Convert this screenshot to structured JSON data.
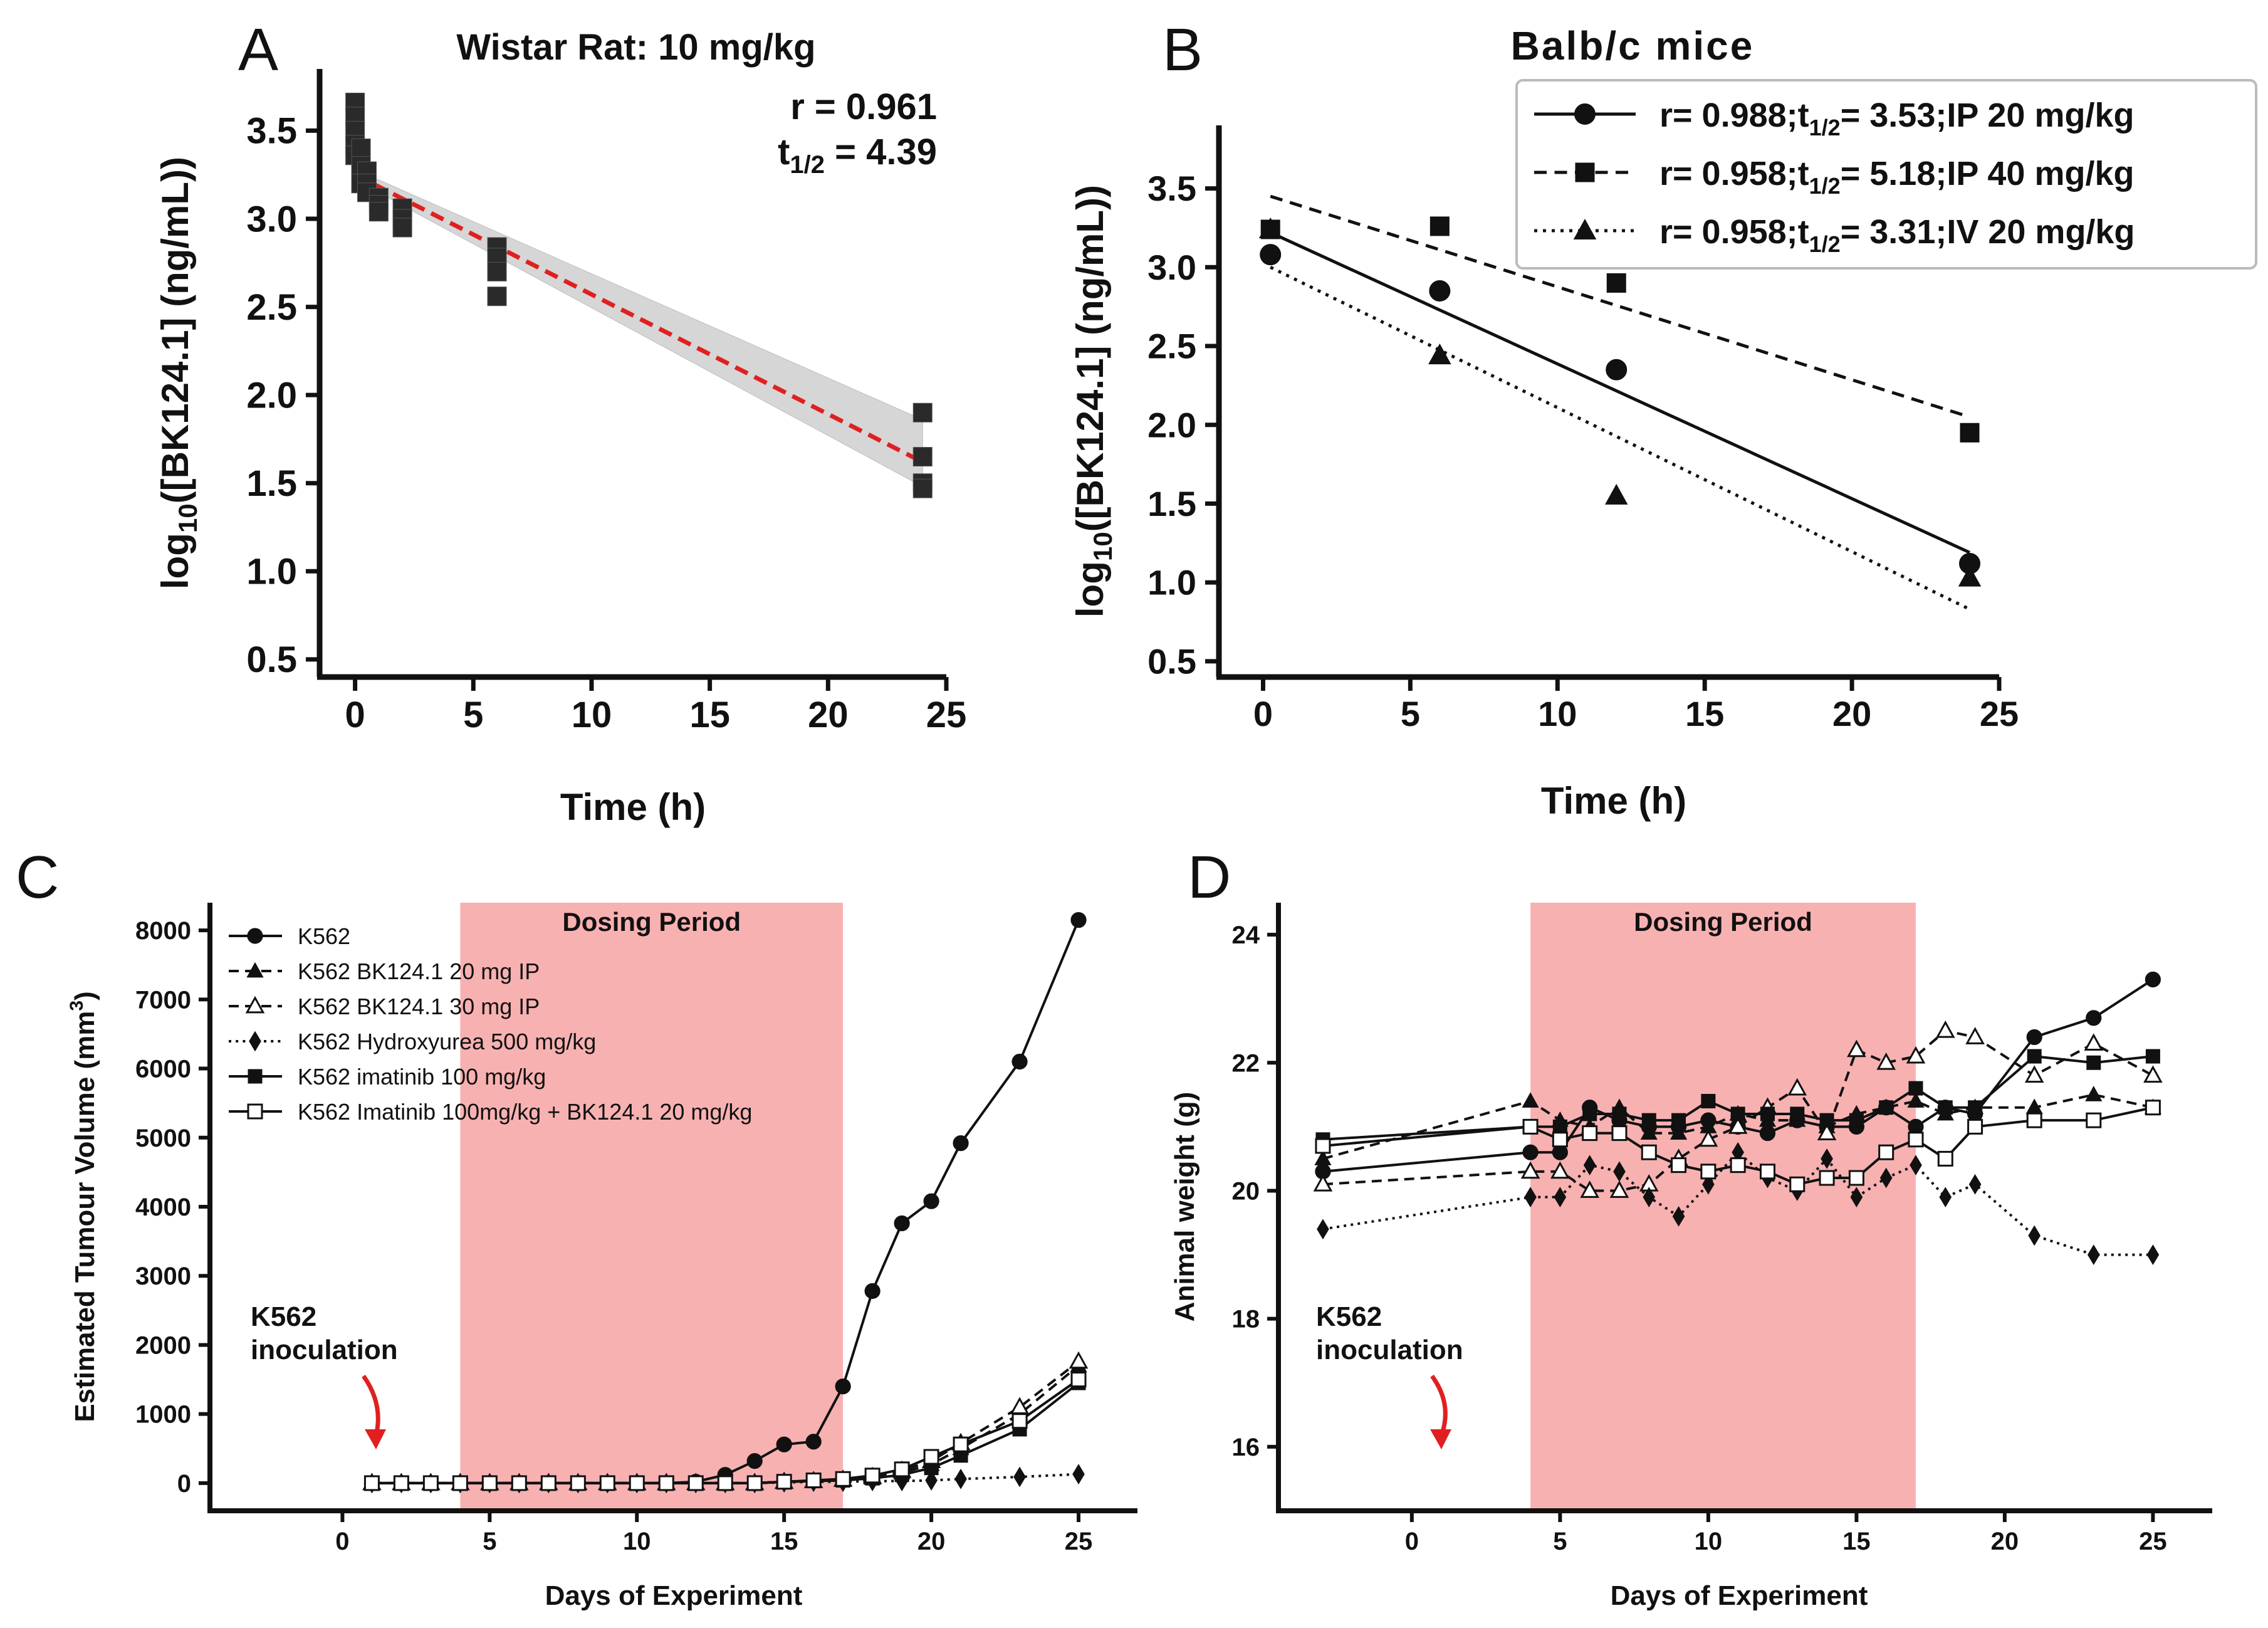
{
  "colors": {
    "ink": "#111111",
    "fit_a": "#e02020",
    "band_a": "#cfcfcf",
    "dosing_fill": "#f7a8a8",
    "annotation": "#e02020"
  },
  "chart_data": [
    {
      "panel": "A",
      "type": "scatter",
      "title": "Wistar Rat: 10 mg/kg",
      "xlabel": "Time (h)",
      "ylabel": "log10([BK124.1] (ng/mL))",
      "xlim": [
        -1.5,
        25
      ],
      "ylim": [
        0.4,
        3.85
      ],
      "xticks": [
        0,
        5,
        10,
        15,
        20,
        25
      ],
      "yticks": [
        0.5,
        1.0,
        1.5,
        2.0,
        2.5,
        3.0,
        3.5
      ],
      "ytick_labels": [
        "0.5",
        "1.0",
        "1.5",
        "2.0",
        "2.5",
        "3.0",
        "3.5"
      ],
      "annotation": {
        "r": "r = 0.961",
        "t_half": "t1/2 = 4.39"
      },
      "points": {
        "x": [
          0,
          0,
          0,
          0,
          0,
          0.25,
          0.25,
          0.25,
          0.5,
          0.5,
          0.5,
          1,
          1,
          1,
          2,
          2,
          2,
          6,
          6,
          6,
          6,
          24,
          24,
          24,
          24
        ],
        "y": [
          3.66,
          3.58,
          3.5,
          3.42,
          3.36,
          3.4,
          3.3,
          3.2,
          3.27,
          3.2,
          3.15,
          3.12,
          3.08,
          3.04,
          3.06,
          3.0,
          2.95,
          2.84,
          2.78,
          2.7,
          2.56,
          1.9,
          1.65,
          1.5,
          1.47
        ]
      },
      "fit": {
        "x": [
          0,
          24
        ],
        "y": [
          3.25,
          1.62
        ]
      },
      "ci_band": {
        "x": [
          0,
          24
        ],
        "upper": [
          3.28,
          1.86
        ],
        "lower": [
          3.22,
          1.48
        ]
      }
    },
    {
      "panel": "B",
      "type": "scatter",
      "title": "Balb/c  mice",
      "xlabel": "Time (h)",
      "ylabel": "log10([BK124.1] (ng/mL))",
      "xlim": [
        -1.5,
        25
      ],
      "ylim": [
        0.4,
        3.9
      ],
      "xticks": [
        0,
        5,
        10,
        15,
        20,
        25
      ],
      "yticks": [
        0.5,
        1.0,
        1.5,
        2.0,
        2.5,
        3.0,
        3.5
      ],
      "ytick_labels": [
        "0.5",
        "1.0",
        "1.5",
        "2.0",
        "2.5",
        "3.0",
        "3.5"
      ],
      "series": [
        {
          "name": "r= 0.988;t1/2= 3.53;IP 20 mg/kg",
          "r": "r= 0.988;",
          "t_half": "3.53",
          "route": ";IP 20 mg/kg",
          "marker": "circle",
          "linestyle": "solid",
          "x": [
            0.25,
            6,
            12,
            24
          ],
          "y": [
            3.08,
            2.85,
            2.35,
            1.12
          ],
          "fit": {
            "x": [
              0.25,
              24
            ],
            "y": [
              3.22,
              1.19
            ]
          }
        },
        {
          "name": "r= 0.958;t1/2= 5.18;IP 40 mg/kg",
          "r": "r= 0.958;",
          "t_half": "5.18",
          "route": ";IP 40 mg/kg",
          "marker": "square",
          "linestyle": "dashed",
          "x": [
            0.25,
            6,
            12,
            24
          ],
          "y": [
            3.24,
            3.26,
            2.9,
            1.95
          ],
          "fit": {
            "x": [
              0.25,
              24
            ],
            "y": [
              3.45,
              2.05
            ]
          }
        },
        {
          "name": "r= 0.958;t1/2= 3.31;IV 20 mg/kg",
          "r": "r= 0.958;",
          "t_half": "3.31",
          "route": ";IV 20 mg/kg",
          "marker": "triangle",
          "linestyle": "dotted",
          "x": [
            0.25,
            6,
            12,
            24
          ],
          "y": [
            3.24,
            2.44,
            1.55,
            1.03
          ],
          "fit": {
            "x": [
              0.25,
              24
            ],
            "y": [
              3.0,
              0.83
            ]
          }
        }
      ]
    },
    {
      "panel": "C",
      "type": "line",
      "xlabel": "Days of Experiment",
      "ylabel": "Estimated Tumour Volume (mm3)",
      "xlim": [
        -4.5,
        27
      ],
      "ylim": [
        -400,
        8400
      ],
      "xticks": [
        0,
        5,
        10,
        15,
        20,
        25
      ],
      "yticks": [
        0,
        1000,
        2000,
        3000,
        4000,
        5000,
        6000,
        7000,
        8000
      ],
      "ytick_labels": [
        "0",
        "1000",
        "2000",
        "3000",
        "4000",
        "5000",
        "6000",
        "7000",
        "8000"
      ],
      "dosing_period": {
        "label": "Dosing Period",
        "start": 4,
        "end": 17
      },
      "inoculation": {
        "label_line1": "K562",
        "label_line2": "inoculation",
        "day": 1
      },
      "days": [
        1,
        2,
        3,
        4,
        5,
        6,
        7,
        8,
        9,
        10,
        11,
        12,
        13,
        14,
        15,
        16,
        17,
        18,
        19,
        20,
        21,
        23,
        25
      ],
      "series": [
        {
          "name": "K562",
          "marker": "circle",
          "open": false,
          "linestyle": "solid",
          "values": [
            0,
            0,
            0,
            0,
            0,
            0,
            0,
            0,
            0,
            0,
            0,
            20,
            120,
            320,
            560,
            600,
            1400,
            2780,
            3760,
            4080,
            4920,
            6100,
            8150
          ]
        },
        {
          "name": "K562 BK124.1 20 mg IP",
          "marker": "triangle",
          "open": false,
          "linestyle": "dashed",
          "values": [
            0,
            0,
            0,
            0,
            0,
            0,
            0,
            0,
            0,
            0,
            0,
            0,
            0,
            0,
            20,
            30,
            40,
            70,
            150,
            270,
            500,
            1000,
            1700
          ]
        },
        {
          "name": "K562 BK124.1 30 mg IP",
          "marker": "triangle",
          "open": true,
          "linestyle": "dashed",
          "values": [
            0,
            0,
            0,
            0,
            0,
            0,
            0,
            0,
            0,
            0,
            0,
            0,
            0,
            0,
            20,
            30,
            50,
            90,
            180,
            320,
            580,
            1100,
            1760
          ]
        },
        {
          "name": "K562 Hydroxyurea 500 mg/kg",
          "marker": "diamond",
          "open": false,
          "linestyle": "dotted",
          "values": [
            0,
            0,
            0,
            0,
            0,
            0,
            0,
            0,
            0,
            0,
            0,
            0,
            0,
            0,
            10,
            20,
            20,
            30,
            30,
            40,
            60,
            90,
            130
          ]
        },
        {
          "name": "K562 imatinib 100 mg/kg",
          "marker": "square",
          "open": false,
          "linestyle": "solid",
          "values": [
            0,
            0,
            0,
            0,
            0,
            0,
            0,
            0,
            0,
            0,
            0,
            0,
            0,
            0,
            20,
            30,
            40,
            70,
            120,
            220,
            400,
            780,
            1450
          ]
        },
        {
          "name": "K562 Imatinib 100mg/kg + BK124.1 20 mg/kg",
          "marker": "square",
          "open": true,
          "linestyle": "solid",
          "values": [
            0,
            0,
            0,
            0,
            0,
            0,
            0,
            0,
            0,
            0,
            0,
            0,
            0,
            0,
            20,
            40,
            60,
            110,
            200,
            380,
            560,
            900,
            1500
          ]
        }
      ]
    },
    {
      "panel": "D",
      "type": "line",
      "xlabel": "Days of Experiment",
      "ylabel": "Animal weight (g)",
      "xlim": [
        -4.5,
        27
      ],
      "ylim": [
        15,
        24.5
      ],
      "xticks": [
        0,
        5,
        10,
        15,
        20,
        25
      ],
      "yticks": [
        16,
        18,
        20,
        22,
        24
      ],
      "ytick_labels": [
        "16",
        "18",
        "20",
        "22",
        "24"
      ],
      "dosing_period": {
        "label": "Dosing Period",
        "start": 4,
        "end": 17
      },
      "inoculation": {
        "label_line1": "K562",
        "label_line2": "inoculation",
        "day": 1
      },
      "days": [
        -3,
        4,
        5,
        6,
        7,
        8,
        9,
        10,
        11,
        12,
        13,
        14,
        15,
        16,
        17,
        18,
        19,
        21,
        23,
        25
      ],
      "series": [
        {
          "name": "K562",
          "marker": "circle",
          "open": false,
          "linestyle": "solid",
          "values": [
            20.3,
            20.6,
            20.6,
            21.3,
            21.1,
            21.0,
            21.0,
            21.1,
            21.0,
            20.9,
            21.1,
            21.0,
            21.0,
            21.3,
            21.0,
            21.3,
            21.2,
            22.4,
            22.7,
            23.3
          ]
        },
        {
          "name": "K562 BK124.1 20 mg IP",
          "marker": "triangle",
          "open": false,
          "linestyle": "dashed",
          "values": [
            20.5,
            21.4,
            21.1,
            21.0,
            21.3,
            20.9,
            20.9,
            21.0,
            21.2,
            21.1,
            21.1,
            21.0,
            21.2,
            21.3,
            21.4,
            21.2,
            21.3,
            21.3,
            21.5,
            21.3
          ]
        },
        {
          "name": "K562 BK124.1 30 mg IP",
          "marker": "triangle",
          "open": true,
          "linestyle": "dashed",
          "values": [
            20.1,
            20.3,
            20.3,
            20.0,
            20.0,
            20.1,
            20.5,
            20.8,
            21.0,
            21.3,
            21.6,
            20.9,
            22.2,
            22.0,
            22.1,
            22.5,
            22.4,
            21.8,
            22.3,
            21.8
          ]
        },
        {
          "name": "K562 Hydroxyurea 500 mg/kg",
          "marker": "diamond",
          "open": false,
          "linestyle": "dotted",
          "values": [
            19.4,
            19.9,
            19.9,
            20.4,
            20.3,
            19.9,
            19.6,
            20.1,
            20.6,
            20.2,
            20.0,
            20.5,
            19.9,
            20.2,
            20.4,
            19.9,
            20.1,
            19.3,
            19.0,
            19.0
          ]
        },
        {
          "name": "K562 imatinib 100 mg/kg",
          "marker": "square",
          "open": false,
          "linestyle": "solid",
          "values": [
            20.8,
            21.0,
            21.0,
            21.2,
            21.2,
            21.1,
            21.1,
            21.4,
            21.2,
            21.2,
            21.2,
            21.1,
            21.1,
            21.3,
            21.6,
            21.3,
            21.3,
            22.1,
            22.0,
            22.1
          ]
        },
        {
          "name": "K562 Imatinib 100mg/kg + BK124.1 20 mg/kg",
          "marker": "square",
          "open": true,
          "linestyle": "solid",
          "values": [
            20.7,
            21.0,
            20.8,
            20.9,
            20.9,
            20.6,
            20.4,
            20.3,
            20.4,
            20.3,
            20.1,
            20.2,
            20.2,
            20.6,
            20.8,
            20.5,
            21.0,
            21.1,
            21.1,
            21.3
          ]
        }
      ]
    }
  ]
}
